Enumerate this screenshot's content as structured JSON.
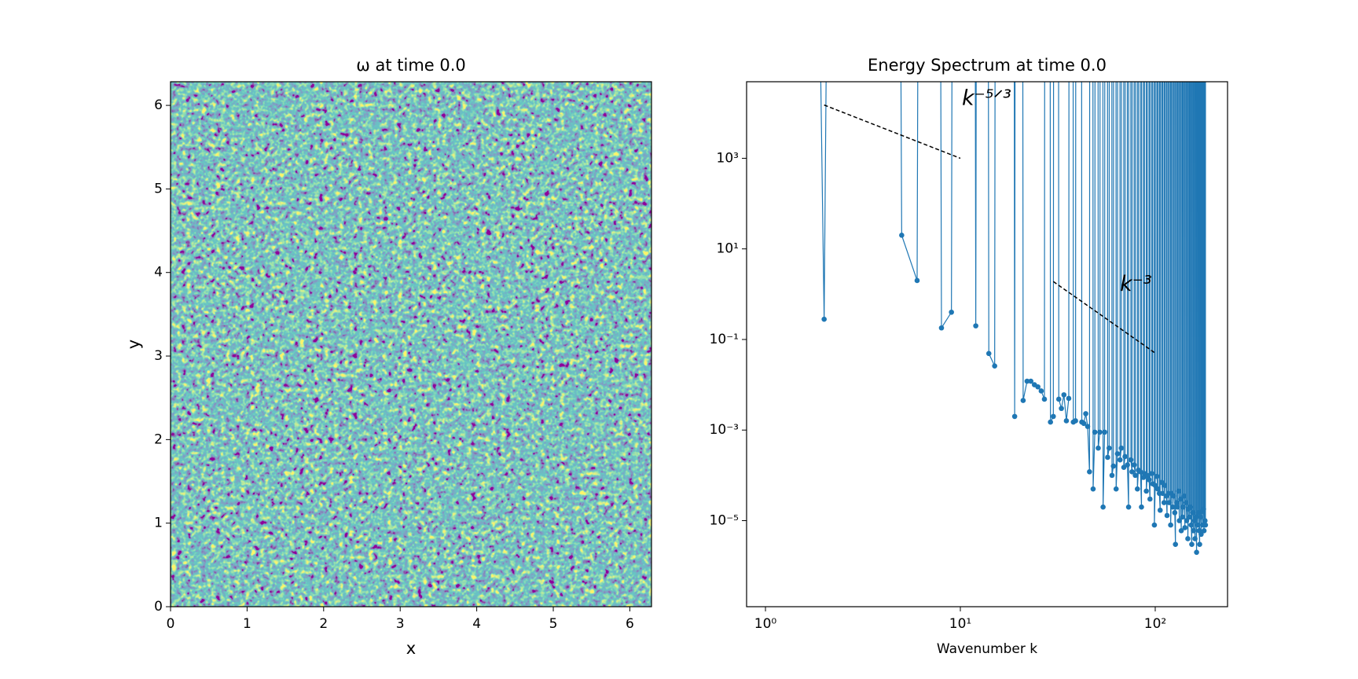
{
  "chart_data": [
    {
      "type": "heatmap",
      "title": "ω at time 0.0",
      "xlabel": "x",
      "ylabel": "y",
      "xlim": [
        0,
        6.283
      ],
      "ylim": [
        0,
        6.283
      ],
      "xticks": [
        0,
        1,
        2,
        3,
        4,
        5,
        6
      ],
      "yticks": [
        0,
        1,
        2,
        3,
        4,
        5,
        6
      ],
      "colormap": "viridis"
    },
    {
      "type": "line",
      "title": "Energy Spectrum at time 0.0",
      "xlabel": "Wavenumber k",
      "xscale": "log",
      "yscale": "log",
      "xlim": [
        0.8,
        235
      ],
      "ylim": [
        1.26e-07,
        49000
      ],
      "xticks": [
        {
          "value": 1,
          "label": "10⁰"
        },
        {
          "value": 10,
          "label": "10¹"
        },
        {
          "value": 100,
          "label": "10²"
        }
      ],
      "yticks": [
        {
          "value": 1e-05,
          "label": "10⁻⁵"
        },
        {
          "value": 0.001,
          "label": "10⁻³"
        },
        {
          "value": 0.1,
          "label": "10⁻¹"
        },
        {
          "value": 10,
          "label": "10¹"
        },
        {
          "value": 1000,
          "label": "10³"
        }
      ],
      "reference_lines": [
        {
          "label": "k⁻⁵ᐟ³",
          "x": [
            2,
            10
          ],
          "y": [
            15000,
            1000
          ]
        },
        {
          "label": "k⁻³",
          "x": [
            30,
            100
          ],
          "y": [
            1.9,
            0.05
          ]
        }
      ],
      "series": [
        {
          "color": "#1f77b4",
          "x": [
            1,
            2,
            3,
            4,
            5,
            6,
            7,
            8,
            9,
            10,
            11,
            12,
            13,
            14,
            15,
            16,
            17,
            18,
            19,
            20,
            21,
            22,
            23,
            24,
            25,
            26,
            27,
            28,
            29,
            30,
            31,
            32,
            33,
            34,
            35,
            36,
            37,
            38,
            39,
            40,
            41,
            42,
            43,
            44,
            45,
            46,
            47,
            48,
            49,
            50,
            51,
            52,
            53,
            54,
            55,
            56,
            57,
            58,
            59,
            60,
            61,
            62,
            63,
            64,
            65,
            66,
            67,
            68,
            69,
            70,
            71,
            72,
            73,
            74,
            75,
            76,
            77,
            78,
            79,
            80,
            81,
            82,
            83,
            84,
            85,
            86,
            87,
            88,
            89,
            90,
            91,
            92,
            93,
            94,
            95,
            96,
            97,
            98,
            99,
            100,
            101,
            102,
            103,
            104,
            105,
            106,
            107,
            108,
            109,
            110,
            111,
            112,
            113,
            114,
            115,
            116,
            117,
            118,
            119,
            120,
            121,
            122,
            123,
            124,
            125,
            126,
            127,
            128,
            129,
            130,
            131,
            132,
            133,
            134,
            135,
            136,
            137,
            138,
            139,
            140,
            141,
            142,
            143,
            144,
            145,
            146,
            147,
            148,
            149,
            150,
            151,
            152,
            153,
            154,
            155,
            156,
            157,
            158,
            159,
            160,
            161,
            162,
            163,
            164,
            165,
            166,
            167,
            168,
            169,
            170,
            171,
            172,
            173,
            174,
            175,
            176,
            177,
            178,
            179,
            180,
            181,
            182
          ],
          "values": [
            0,
            0.28,
            0,
            0,
            20,
            2.0,
            0,
            0.18,
            0.4,
            0,
            0,
            0.2,
            0,
            0.049,
            0.026,
            0,
            0,
            0,
            0.002,
            0,
            0.0045,
            0.012,
            0.012,
            0.01,
            0.009,
            0.0073,
            0.0048,
            0,
            0.0015,
            0.002,
            0,
            0.0048,
            0.003,
            0.006,
            0.0016,
            0.005,
            0,
            0.0015,
            0.0016,
            0,
            0,
            0.0015,
            0.0014,
            0.0023,
            0.0012,
            0.00012,
            0,
            5e-05,
            0.0009,
            0,
            0.0004,
            0.0009,
            0,
            2e-05,
            0.0009,
            0,
            0.00025,
            0.0004,
            0,
            0.0001,
            0.00016,
            0,
            5e-05,
            0.0003,
            0,
            0.00022,
            0.0004,
            0,
            0.00015,
            0.00026,
            0,
            0.00017,
            2e-05,
            0,
            0.00022,
            0.00012,
            0,
            0.00017,
            0.0001,
            0,
            5e-05,
            0.00013,
            0,
            0.00012,
            2e-05,
            0,
            9e-05,
            0.00011,
            0,
            4.5e-05,
            0.0001,
            0,
            8e-05,
            3e-05,
            0,
            0.00011,
            6.5e-05,
            0,
            8e-06,
            6e-05,
            0,
            9.5e-05,
            5e-05,
            0,
            4e-05,
            1.7e-05,
            0,
            7e-05,
            4e-05,
            0,
            2.5e-05,
            6e-05,
            0,
            3.5e-05,
            1.3e-05,
            0,
            4e-05,
            2.5e-05,
            0,
            8e-06,
            4e-05,
            0,
            2e-05,
            3.5e-05,
            0,
            1.5e-05,
            3e-06,
            0,
            2.5e-05,
            2e-05,
            0,
            4.5e-05,
            1e-05,
            0,
            3e-05,
            6e-06,
            0,
            1.2e-05,
            2e-05,
            0,
            3.5e-05,
            7e-06,
            0,
            2.5e-05,
            1e-05,
            0,
            4e-06,
            1.8e-05,
            0,
            1.2e-05,
            2e-05,
            0,
            8e-06,
            3e-06,
            0,
            1.5e-05,
            6e-06,
            0,
            1e-05,
            4e-06,
            0,
            1.2e-05,
            2e-06,
            0,
            8e-06,
            1.5e-05,
            0,
            6e-06,
            3e-06,
            0,
            1.2e-05,
            5e-06,
            0,
            1.6e-05,
            8e-06,
            0,
            1.8e-05,
            6e-06,
            0,
            1e-05,
            8e-06,
            0
          ]
        }
      ]
    }
  ]
}
